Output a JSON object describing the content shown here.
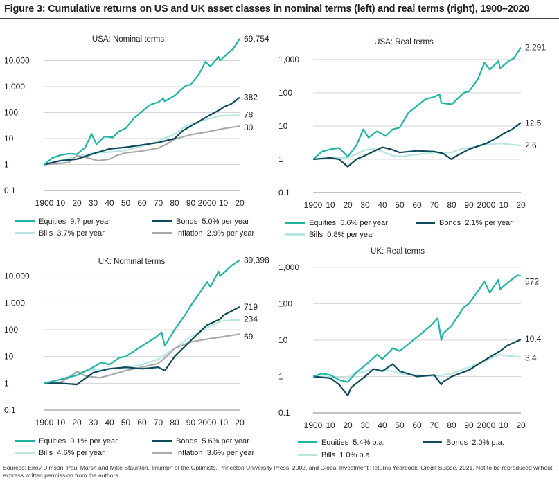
{
  "title": "Figure 3: Cumulative returns on US and UK asset classes in nominal terms (left) and real terms (right), 1900–2020",
  "source": "Sources: Elroy Dimson, Paul Marsh and Mike Staunton, Triumph of the Optimists, Princeton University Press, 2002, and Global Investment Returns Yearbook, Credit Suisse, 2021. Not to be reproduced without express written permission from the authors.",
  "colors": {
    "equities": "#1fb5a4",
    "bonds": "#0e4a5c",
    "bills": "#b7e6e1",
    "inflation": "#a9a9a9"
  },
  "chart_data": [
    {
      "type": "line",
      "title": "USA: Nominal terms",
      "yscale": "log",
      "ylim": [
        0.1,
        100000
      ],
      "yticks": [
        "0.1",
        "1",
        "10",
        "100",
        "1,000",
        "10,000"
      ],
      "xticks": [
        "1900",
        "10",
        "20",
        "30",
        "40",
        "50",
        "60",
        "70",
        "80",
        "90",
        "2000",
        "10",
        "20"
      ],
      "grid": "horizontal",
      "legend": "bottom",
      "series": [
        {
          "key": "equities",
          "name": "Equities",
          "legend_value": "9.7 per year",
          "end_label": "69,754",
          "x": [
            1900,
            1905,
            1910,
            1915,
            1920,
            1925,
            1929,
            1932,
            1937,
            1942,
            1946,
            1950,
            1955,
            1960,
            1965,
            1970,
            1973,
            1974,
            1980,
            1987,
            1990,
            1995,
            1999,
            2002,
            2007,
            2008,
            2013,
            2016,
            2020
          ],
          "y": [
            1,
            1.8,
            2.3,
            2.6,
            2.5,
            4.5,
            15,
            6,
            12,
            11,
            19,
            25,
            60,
            110,
            200,
            250,
            350,
            270,
            450,
            1100,
            1200,
            3000,
            9000,
            6000,
            14000,
            10000,
            20000,
            28000,
            69754
          ]
        },
        {
          "key": "bonds",
          "name": "Bonds",
          "legend_value": "5.0% per year",
          "end_label": "382",
          "x": [
            1900,
            1910,
            1920,
            1930,
            1940,
            1950,
            1960,
            1970,
            1980,
            1985,
            1990,
            2000,
            2008,
            2010,
            2015,
            2020
          ],
          "y": [
            1,
            1.4,
            1.6,
            2.6,
            4,
            4.6,
            5.6,
            7,
            10,
            20,
            30,
            70,
            130,
            160,
            220,
            382
          ]
        },
        {
          "key": "bills",
          "name": "Bills",
          "legend_value": "3.7% per year",
          "end_label": "78",
          "x": [
            1900,
            1910,
            1920,
            1930,
            1940,
            1950,
            1960,
            1970,
            1980,
            1985,
            1990,
            2000,
            2008,
            2010,
            2020
          ],
          "y": [
            1,
            1.4,
            2,
            2.8,
            3,
            3.5,
            5,
            8,
            15,
            25,
            35,
            55,
            75,
            77,
            78
          ]
        },
        {
          "key": "inflation",
          "name": "Inflation",
          "legend_value": "2.9% per year",
          "end_label": "30",
          "x": [
            1900,
            1910,
            1915,
            1920,
            1925,
            1933,
            1940,
            1945,
            1950,
            1960,
            1970,
            1975,
            1980,
            1990,
            2000,
            2010,
            2020
          ],
          "y": [
            1,
            1.1,
            1.2,
            2.2,
            1.9,
            1.4,
            1.6,
            2.3,
            2.8,
            3.3,
            4.3,
            6,
            9.5,
            14,
            18,
            24,
            30
          ]
        }
      ]
    },
    {
      "type": "line",
      "title": "USA: Real terms",
      "yscale": "log",
      "ylim": [
        0.1,
        3000
      ],
      "yticks": [
        "0.1",
        "1",
        "10",
        "100",
        "1,000"
      ],
      "xticks": [
        "1900",
        "10",
        "20",
        "30",
        "40",
        "50",
        "60",
        "70",
        "80",
        "90",
        "2000",
        "10",
        "20"
      ],
      "grid": "horizontal",
      "legend": "bottom",
      "series": [
        {
          "key": "equities",
          "name": "Equities",
          "legend_value": "6.6% per year",
          "end_label": "2,291",
          "x": [
            1900,
            1905,
            1910,
            1915,
            1920,
            1925,
            1929,
            1932,
            1937,
            1942,
            1946,
            1950,
            1955,
            1960,
            1965,
            1970,
            1973,
            1974,
            1980,
            1987,
            1990,
            1995,
            1999,
            2002,
            2007,
            2008,
            2013,
            2016,
            2020
          ],
          "y": [
            1,
            1.7,
            2,
            2.2,
            1.2,
            2.6,
            8,
            4.5,
            7,
            5,
            8,
            9,
            25,
            40,
            65,
            75,
            90,
            50,
            45,
            100,
            110,
            250,
            800,
            500,
            900,
            550,
            900,
            1100,
            2291
          ]
        },
        {
          "key": "bonds",
          "name": "Bonds",
          "legend_value": "2.1% per year",
          "end_label": "12.5",
          "x": [
            1900,
            1910,
            1915,
            1920,
            1925,
            1930,
            1940,
            1945,
            1950,
            1960,
            1970,
            1975,
            1980,
            1982,
            1990,
            2000,
            2008,
            2010,
            2015,
            2020
          ],
          "y": [
            1,
            1.1,
            1,
            0.6,
            1,
            1.3,
            2.3,
            2,
            1.6,
            1.8,
            1.7,
            1.5,
            1,
            1.2,
            2,
            3,
            5,
            6,
            8,
            12.5
          ]
        },
        {
          "key": "bills",
          "name": "Bills",
          "legend_value": "0.8% per year",
          "end_label": "2.6",
          "x": [
            1900,
            1910,
            1920,
            1930,
            1935,
            1946,
            1950,
            1960,
            1970,
            1980,
            1985,
            1990,
            2000,
            2008,
            2020
          ],
          "y": [
            1,
            1.1,
            1.1,
            1.9,
            2.1,
            1.3,
            1.2,
            1.4,
            1.6,
            1.6,
            2,
            2.2,
            2.8,
            3,
            2.6
          ]
        }
      ]
    },
    {
      "type": "line",
      "title": "UK: Nominal terms",
      "yscale": "log",
      "ylim": [
        0.1,
        100000
      ],
      "yticks": [
        "0.1",
        "1",
        "10",
        "100",
        "1,000",
        "10,000"
      ],
      "xticks": [
        "1900",
        "10",
        "20",
        "30",
        "40",
        "50",
        "60",
        "70",
        "80",
        "90",
        "2000",
        "10",
        "20"
      ],
      "grid": "horizontal",
      "legend": "bottom",
      "series": [
        {
          "key": "equities",
          "name": "Equities",
          "legend_value": "9.1% per year",
          "end_label": "39,398",
          "x": [
            1900,
            1910,
            1920,
            1930,
            1935,
            1940,
            1946,
            1950,
            1960,
            1968,
            1972,
            1974,
            1980,
            1987,
            1990,
            2000,
            2002,
            2007,
            2008,
            2015,
            2020
          ],
          "y": [
            1,
            1.4,
            2,
            4,
            6,
            5,
            9,
            10,
            25,
            50,
            80,
            25,
            100,
            400,
            800,
            6000,
            4000,
            15000,
            10000,
            25000,
            39398
          ]
        },
        {
          "key": "bonds",
          "name": "Bonds",
          "legend_value": "5.6% per year",
          "end_label": "719",
          "x": [
            1900,
            1910,
            1920,
            1930,
            1940,
            1950,
            1960,
            1970,
            1974,
            1980,
            1990,
            2000,
            2008,
            2010,
            2015,
            2020
          ],
          "y": [
            1,
            1,
            0.9,
            2.5,
            3.5,
            4,
            3.5,
            4,
            3,
            10,
            40,
            150,
            250,
            350,
            500,
            719
          ]
        },
        {
          "key": "bills",
          "name": "Bills",
          "legend_value": "4.6% per year",
          "end_label": "234",
          "x": [
            1900,
            1910,
            1920,
            1930,
            1940,
            1950,
            1960,
            1970,
            1980,
            1990,
            2000,
            2008,
            2010,
            2020
          ],
          "y": [
            1,
            1.4,
            2.4,
            3.2,
            3.5,
            3.8,
            5,
            8,
            20,
            55,
            120,
            200,
            220,
            234
          ]
        },
        {
          "key": "inflation",
          "name": "Inflation",
          "legend_value": "3.6% per year",
          "end_label": "69",
          "x": [
            1900,
            1910,
            1915,
            1920,
            1925,
            1934,
            1940,
            1950,
            1960,
            1970,
            1975,
            1980,
            1990,
            2000,
            2010,
            2020
          ],
          "y": [
            1,
            1.1,
            1.6,
            2.8,
            1.9,
            1.6,
            2,
            3,
            4,
            5.5,
            10,
            20,
            35,
            45,
            55,
            69
          ]
        }
      ]
    },
    {
      "type": "line",
      "title": "UK: Real terms",
      "yscale": "log",
      "ylim": [
        0.1,
        2000
      ],
      "yticks": [
        "0.1",
        "1",
        "10",
        "100",
        "1,000"
      ],
      "xticks": [
        "1900",
        "10",
        "20",
        "30",
        "40",
        "50",
        "60",
        "70",
        "80",
        "90",
        "2000",
        "10",
        "20"
      ],
      "grid": "horizontal",
      "legend": "bottom",
      "series": [
        {
          "key": "equities",
          "name": "Equities",
          "legend_value": "5.4% p.a.",
          "end_label": "572",
          "x": [
            1900,
            1905,
            1910,
            1915,
            1920,
            1925,
            1930,
            1937,
            1940,
            1946,
            1950,
            1960,
            1968,
            1972,
            1974,
            1975,
            1980,
            1987,
            1990,
            1999,
            2002,
            2007,
            2008,
            2013,
            2018,
            2020
          ],
          "y": [
            1,
            1.2,
            1.1,
            0.8,
            0.7,
            1.3,
            2,
            4,
            3,
            6,
            5,
            12,
            25,
            40,
            10,
            15,
            25,
            80,
            100,
            400,
            200,
            450,
            250,
            400,
            600,
            572
          ]
        },
        {
          "key": "bonds",
          "name": "Bonds",
          "legend_value": "2.0% p.a.",
          "end_label": "10.4",
          "x": [
            1900,
            1910,
            1915,
            1920,
            1922,
            1930,
            1935,
            1940,
            1946,
            1950,
            1960,
            1970,
            1974,
            1975,
            1980,
            1990,
            2000,
            2008,
            2012,
            2020
          ],
          "y": [
            1,
            0.9,
            0.6,
            0.3,
            0.5,
            1,
            1.6,
            1.4,
            2.2,
            1.4,
            1,
            1.1,
            0.6,
            0.7,
            1,
            1.5,
            3,
            5,
            7,
            10.4
          ]
        },
        {
          "key": "bills",
          "name": "Bills",
          "legend_value": "1.0% p.a.",
          "end_label": "3.4",
          "x": [
            1900,
            1910,
            1920,
            1922,
            1930,
            1935,
            1940,
            1946,
            1950,
            1960,
            1970,
            1980,
            1990,
            2000,
            2007,
            2010,
            2020
          ],
          "y": [
            1,
            1,
            0.9,
            1.1,
            1.4,
            1.6,
            1.5,
            1.4,
            1.2,
            1.1,
            1,
            1.2,
            1.8,
            2.7,
            4,
            3.8,
            3.4
          ]
        }
      ]
    }
  ]
}
